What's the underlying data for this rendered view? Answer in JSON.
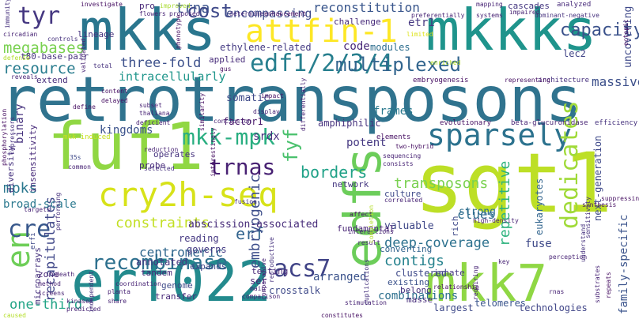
{
  "cloud": {
    "retrotransposons": "retrotransposons",
    "mkks": "mkks",
    "mkkks": "mkkks",
    "fuf1": "fuf1",
    "sgt1": "sgt1",
    "erf022": "erf022",
    "mkk7": "mkk7",
    "edfs": "edfs",
    "cry2h_seq": "cry2h-seq",
    "attfin_1": "attfin-1",
    "sparsely": "sparsely",
    "edf1234": "edf1/2/3/4",
    "recombinase": "recombinase",
    "en": "en",
    "cre": "cre",
    "tyr": "tyr",
    "trna": "trna",
    "trnas": "trnas",
    "mkk_mpk": "mkk-mpk",
    "acs7": "acs7",
    "dedicates": "dedicates",
    "multiplexed": "multiplexed",
    "cost": "cost",
    "reconstitution": "reconstitution",
    "capacity": "capacity",
    "encompassing": "encompassing",
    "megabases": "megabases",
    "resource": "resource",
    "borders": "borders",
    "transposons": "transposons",
    "contigs": "contigs",
    "constraints": "constraints",
    "three_fold": "three-fold",
    "intracellularly": "intracellularly",
    "deep_coverage": "deep-coverage",
    "combinations": "combinations",
    "recapitulates": "recapitulates",
    "one_third": "one-third",
    "centromeric": "centromeric",
    "erf": "erf",
    "embryogenic": "embryogenic",
    "repetitive": "repetitive",
    "massively": "massively",
    "fyf": "fyf",
    "mpks": "mpks",
    "clues": "clues",
    "family_specific": "family-specific",
    "etr1": "etr1",
    "lec2": "lec2",
    "code": "code",
    "modules": "modules",
    "frames": "frames",
    "uncovering": "uncovering",
    "ethylene_related": "ethylene-related",
    "abscission_associated": "abscission-associated",
    "annotated": "annotated",
    "broad_scale": "broad-scale",
    "binary": "binary",
    "kingdoms": "kingdoms",
    "strong": "strong",
    "valuable": "valuable",
    "fuse": "fuse",
    "eukaryotes": "eukaryotes",
    "telomeres": "telomeres",
    "next_generation": "next-generation",
    "potent": "potent",
    "amphiphilic": "amphiphilic",
    "fundamental": "fundamental",
    "arranged": "arranged",
    "crosstalk": "crosstalk",
    "largest": "largest",
    "technologies": "technologies",
    "insensitivity": "insensitivity",
    "diversity": "diversity",
    "somatic": "somatic",
    "tandem": "tandem",
    "genome": "genome",
    "transfer": "transfer",
    "existing": "existing",
    "innate": "innate",
    "clustered": "clustered",
    "converting": "converting",
    "reading": "reading",
    "governs": "governs",
    "expands": "expands",
    "srdx": "srdx",
    "factor1": "factor1",
    "culture": "culture",
    "masse": "masse",
    "ser": "ser",
    "rich": "rich",
    "belong": "belong",
    "testing": "testing",
    "microarrays": "microarrays",
    "zone": "zone",
    "lineage": "lineage",
    "pro": "pro",
    "challenge": "challenge",
    "cascades": "cascades",
    "applied": "applied",
    "extend": "extend",
    "t80_base_pair": "t80-base-pair",
    "operates": "operates",
    "probe": "probe",
    "network": "network",
    "efficiency": "efficiency",
    "evolutionary": "evolutionary",
    "beta_glucuronidase": "beta-glucuronidase",
    "embryogenesis": "embryogenesis",
    "architecture": "architecture",
    "elements": "elements",
    "erfi": "erfi",
    "mapping": "mapping",
    "analyzed": "analyzed",
    "investigate": "investigate",
    "immunity": "immunity",
    "circadian": "circadian",
    "controls": "controls",
    "mkk_induced": "mkk-induced",
    "improved": "improved",
    "flowers": "flowers",
    "proposed": "proposed",
    "determine": "determine",
    "enhancement": "enhancement",
    "preferentially": "preferentially",
    "systems": "systems",
    "impaired": "impaired",
    "dominant_negative": "dominant-negative",
    "ectopic": "ectopic",
    "phenotype": "phenotype",
    "limited": "limited",
    "enriched": "enriched",
    "representing": "representing",
    "defense": "defense",
    "reveals": "reveals",
    "total": "total",
    "validated": "validated",
    "gus": "gus",
    "content": "content",
    "delayed": "delayed",
    "subset": "subset",
    "thaliana": "thaliana",
    "deficient": "deficient",
    "impact": "impact",
    "display": "display",
    "differentially": "differentially",
    "define": "define",
    "phosphorylation": "phosphorylation",
    "repressors": "repressors",
    "conclusion": "conclusion",
    "similarity": "similarity",
    "two_hybrid": "two-hybrid",
    "sequencing": "sequencing",
    "consists": "consists",
    "reduction": "reduction",
    "interestingly": "interestingly",
    "selected": "selected",
    "35s": "35s",
    "common": "common",
    "targets": "targets",
    "performing": "performing",
    "fusion": "fusion",
    "synthesis": "synthesis",
    "suppressing": "suppressing",
    "sensitivity": "sensitivity",
    "affect": "affect",
    "interactions": "interactions",
    "correlated": "correlated",
    "high_density": "high-density",
    "perception": "perception",
    "understand": "understand",
    "key": "key",
    "result": "result",
    "completion": "completion",
    "repeats": "repeats",
    "substrates": "substrates",
    "relationship": "relationship",
    "requiring": "requiring",
    "rnas": "rnas",
    "stimulation": "stimulation",
    "duplications": "duplications",
    "comparative": "comparative",
    "reproductive": "reproductive",
    "main": "main",
    "comparison": "comparison",
    "constitutes": "constitutes",
    "death": "death",
    "method": "method",
    "screens": "screens",
    "kinases": "kinases",
    "predicted": "predicted",
    "planta": "planta",
    "share": "share",
    "coordination": "coordination",
    "independent": "independent",
    "caused": "caused"
  }
}
